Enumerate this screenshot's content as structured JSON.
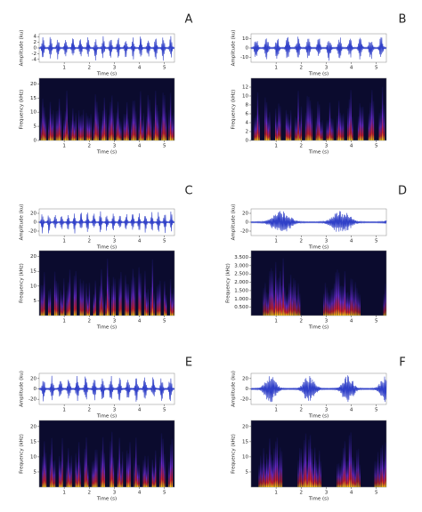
{
  "chart_data": [
    {
      "type": "waveform",
      "panel": "A",
      "ylabel": "Amplitude (ku)",
      "xlabel": "Time (s)",
      "xlim": [
        0,
        5.4
      ],
      "xticks": [
        1,
        2,
        3,
        4,
        5
      ],
      "ylim": [
        -5,
        5
      ],
      "yticks": [
        -4,
        -2,
        0,
        2,
        4
      ]
    },
    {
      "type": "spectrogram",
      "ylabel": "Frequency (kHz)",
      "xlabel": "Time (s)",
      "xlim": [
        0,
        5.4
      ],
      "xticks": [
        1,
        2,
        3,
        4,
        5
      ],
      "ylim": [
        0,
        22
      ],
      "yticks": [
        0,
        5,
        10,
        15,
        20
      ]
    },
    {
      "type": "waveform",
      "panel": "B",
      "ylabel": "Amplitude (ku)",
      "xlabel": "Time (s)",
      "xlim": [
        0,
        5.4
      ],
      "xticks": [
        1,
        2,
        3,
        4,
        5
      ],
      "ylim": [
        -15,
        15
      ],
      "yticks": [
        -10,
        0,
        10
      ]
    },
    {
      "type": "spectrogram",
      "ylabel": "Frequency (kHz)",
      "xlabel": "Time (s)",
      "xlim": [
        0,
        5.4
      ],
      "xticks": [
        1,
        2,
        3,
        4,
        5
      ],
      "ylim": [
        0,
        14
      ],
      "yticks": [
        0,
        2,
        4,
        6,
        8,
        10,
        12
      ]
    },
    {
      "type": "waveform",
      "panel": "C",
      "ylabel": "Amplitude (ku)",
      "xlabel": "Time (s)",
      "xlim": [
        0,
        5.4
      ],
      "xticks": [
        1,
        2,
        3,
        4,
        5
      ],
      "ylim": [
        -30,
        30
      ],
      "yticks": [
        -20,
        0,
        20
      ]
    },
    {
      "type": "spectrogram",
      "ylabel": "Frequency (kHz)",
      "xlabel": "Time (s)",
      "xlim": [
        0,
        5.4
      ],
      "xticks": [
        1,
        2,
        3,
        4,
        5
      ],
      "ylim": [
        0,
        22
      ],
      "yticks": [
        5,
        10,
        15,
        20
      ]
    },
    {
      "type": "waveform",
      "panel": "D",
      "ylabel": "Amplitude (ku)",
      "xlabel": "Time (s)",
      "xlim": [
        0,
        5.4
      ],
      "xticks": [
        1,
        2,
        3,
        4,
        5
      ],
      "ylim": [
        -30,
        30
      ],
      "yticks": [
        -20,
        0,
        20
      ]
    },
    {
      "type": "spectrogram",
      "ylabel": "Frequency (kHz)",
      "xlabel": "Time (s)",
      "xlim": [
        0,
        5.4
      ],
      "xticks": [
        1,
        2,
        3,
        4,
        5
      ],
      "ylim": [
        0,
        3.9
      ],
      "yticks": [
        {
          "value": 0.5,
          "label": "0.500"
        },
        {
          "value": 1,
          "label": "1.000"
        },
        {
          "value": 1.5,
          "label": "1.500"
        },
        {
          "value": 2,
          "label": "2.000"
        },
        {
          "value": 2.5,
          "label": "2.500"
        },
        {
          "value": 3,
          "label": "3.000"
        },
        {
          "value": 3.5,
          "label": "3.500"
        }
      ]
    },
    {
      "type": "waveform",
      "panel": "E",
      "ylabel": "Amplitude (ku)",
      "xlabel": "Time (s)",
      "xlim": [
        0,
        5.4
      ],
      "xticks": [
        1,
        2,
        3,
        4,
        5
      ],
      "ylim": [
        -30,
        30
      ],
      "yticks": [
        -20,
        0,
        20
      ]
    },
    {
      "type": "spectrogram",
      "ylabel": "Frequency (kHz)",
      "xlabel": "Time (s)",
      "xlim": [
        0,
        5.4
      ],
      "xticks": [
        1,
        2,
        3,
        4,
        5
      ],
      "ylim": [
        0,
        22
      ],
      "yticks": [
        5,
        10,
        15,
        20
      ]
    },
    {
      "type": "waveform",
      "panel": "F",
      "ylabel": "Amplitude (ku)",
      "xlabel": "Time (s)",
      "xlim": [
        0,
        5.4
      ],
      "xticks": [
        1,
        2,
        3,
        4,
        5
      ],
      "ylim": [
        -30,
        30
      ],
      "yticks": [
        -20,
        0,
        20
      ]
    },
    {
      "type": "spectrogram",
      "ylabel": "Frequency (kHz)",
      "xlabel": "Time (s)",
      "xlim": [
        0,
        5.4
      ],
      "xticks": [
        1,
        2,
        3,
        4,
        5
      ],
      "ylim": [
        0,
        22
      ],
      "yticks": [
        5,
        10,
        15,
        20
      ]
    }
  ]
}
